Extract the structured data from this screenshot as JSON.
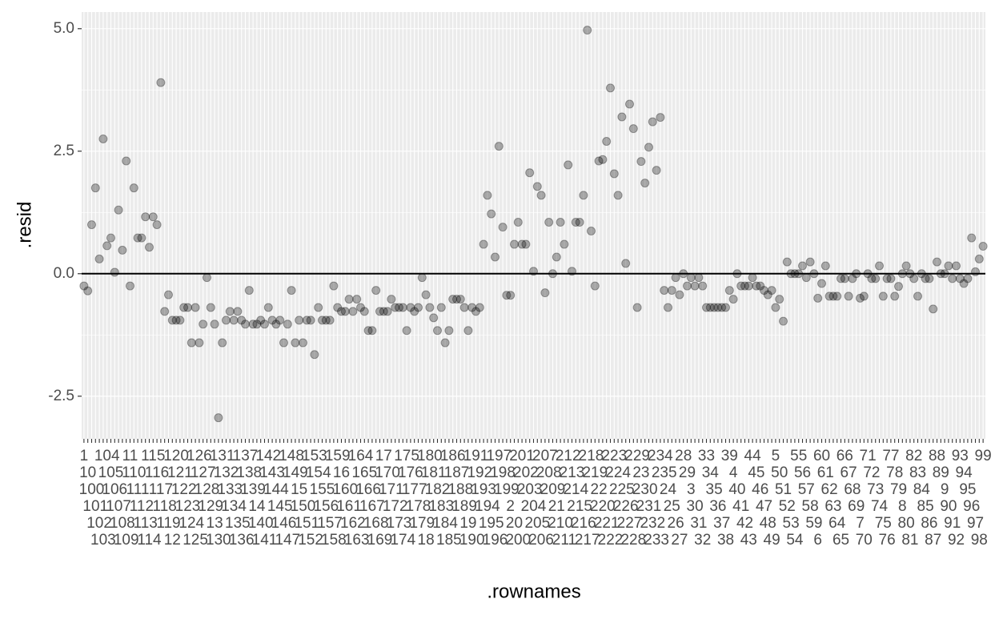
{
  "chart_data": {
    "type": "scatter",
    "x_label": ".rownames",
    "y_label": ".resid",
    "categories": [
      "1",
      "10",
      "100",
      "101",
      "102",
      "103",
      "104",
      "105",
      "106",
      "107",
      "108",
      "109",
      "11",
      "110",
      "111",
      "112",
      "113",
      "114",
      "115",
      "116",
      "117",
      "118",
      "119",
      "12",
      "120",
      "121",
      "122",
      "123",
      "124",
      "125",
      "126",
      "127",
      "128",
      "129",
      "13",
      "130",
      "131",
      "132",
      "133",
      "134",
      "135",
      "136",
      "137",
      "138",
      "139",
      "14",
      "140",
      "141",
      "142",
      "143",
      "144",
      "145",
      "146",
      "147",
      "148",
      "149",
      "15",
      "150",
      "151",
      "152",
      "153",
      "154",
      "155",
      "156",
      "157",
      "158",
      "159",
      "16",
      "160",
      "161",
      "162",
      "163",
      "164",
      "165",
      "166",
      "167",
      "168",
      "169",
      "17",
      "170",
      "171",
      "172",
      "173",
      "174",
      "175",
      "176",
      "177",
      "178",
      "179",
      "18",
      "180",
      "181",
      "182",
      "183",
      "184",
      "185",
      "186",
      "187",
      "188",
      "189",
      "19",
      "190",
      "191",
      "192",
      "193",
      "194",
      "195",
      "196",
      "197",
      "198",
      "199",
      "2",
      "20",
      "200",
      "201",
      "202",
      "203",
      "204",
      "205",
      "206",
      "207",
      "208",
      "209",
      "21",
      "210",
      "211",
      "212",
      "213",
      "214",
      "215",
      "216",
      "217",
      "218",
      "219",
      "22",
      "220",
      "221",
      "222",
      "223",
      "224",
      "225",
      "226",
      "227",
      "228",
      "229",
      "23",
      "230",
      "231",
      "232",
      "233",
      "234",
      "235",
      "24",
      "25",
      "26",
      "27",
      "28",
      "29",
      "3",
      "30",
      "31",
      "32",
      "33",
      "34",
      "35",
      "36",
      "37",
      "38",
      "39",
      "4",
      "40",
      "41",
      "42",
      "43",
      "44",
      "45",
      "46",
      "47",
      "48",
      "49",
      "5",
      "50",
      "51",
      "52",
      "53",
      "54",
      "55",
      "56",
      "57",
      "58",
      "59",
      "6",
      "60",
      "61",
      "62",
      "63",
      "64",
      "65",
      "66",
      "67",
      "68",
      "69",
      "7",
      "70",
      "71",
      "72",
      "73",
      "74",
      "75",
      "76",
      "77",
      "78",
      "79",
      "8",
      "80",
      "81",
      "82",
      "83",
      "84",
      "85",
      "86",
      "87",
      "88",
      "89",
      "9",
      "90",
      "91",
      "92",
      "93",
      "94",
      "95",
      "96",
      "97",
      "98",
      "99"
    ],
    "values": [
      -0.25,
      -0.35,
      1.0,
      1.75,
      0.3,
      2.75,
      0.57,
      0.73,
      0.03,
      1.3,
      0.48,
      2.3,
      -0.25,
      1.75,
      0.73,
      0.73,
      1.16,
      0.54,
      1.16,
      1.0,
      3.9,
      -0.77,
      -0.43,
      -0.95,
      -0.95,
      -0.95,
      -0.69,
      -0.69,
      -1.41,
      -0.69,
      -1.41,
      -1.03,
      -0.08,
      -0.69,
      -1.03,
      -2.94,
      -1.41,
      -0.95,
      -0.77,
      -0.95,
      -0.77,
      -0.95,
      -1.03,
      -0.34,
      -1.03,
      -1.03,
      -0.95,
      -1.03,
      -0.69,
      -0.95,
      -1.03,
      -0.95,
      -1.41,
      -1.03,
      -0.34,
      -1.41,
      -0.95,
      -1.41,
      -0.95,
      -0.95,
      -1.65,
      -0.69,
      -0.95,
      -0.95,
      -0.95,
      -0.25,
      -0.69,
      -0.77,
      -0.77,
      -0.52,
      -0.77,
      -0.52,
      -0.69,
      -0.77,
      -1.16,
      -1.16,
      -0.34,
      -0.77,
      -0.77,
      -0.77,
      -0.52,
      -0.69,
      -0.69,
      -0.69,
      -1.16,
      -0.69,
      -0.77,
      -0.69,
      -0.08,
      -0.43,
      -0.69,
      -0.9,
      -1.16,
      -0.69,
      -1.41,
      -1.16,
      -0.52,
      -0.52,
      -0.52,
      -0.69,
      -1.16,
      -0.69,
      -0.77,
      -0.69,
      0.6,
      1.6,
      1.22,
      0.34,
      2.6,
      0.95,
      -0.44,
      -0.44,
      0.6,
      1.05,
      0.6,
      0.6,
      2.06,
      0.05,
      1.78,
      1.6,
      -0.39,
      1.05,
      0.0,
      0.34,
      1.05,
      0.6,
      2.22,
      0.05,
      1.05,
      1.05,
      1.6,
      4.97,
      0.87,
      -0.25,
      2.3,
      2.33,
      2.7,
      3.79,
      2.04,
      1.6,
      3.2,
      0.21,
      3.46,
      2.96,
      -0.69,
      2.29,
      1.85,
      2.58,
      3.1,
      2.11,
      3.19,
      -0.34,
      -0.69,
      -0.34,
      -0.08,
      -0.43,
      0.0,
      -0.25,
      -0.08,
      -0.25,
      -0.08,
      -0.25,
      -0.69,
      -0.69,
      -0.69,
      -0.69,
      -0.69,
      -0.69,
      -0.34,
      -0.52,
      0.0,
      -0.25,
      -0.25,
      -0.25,
      -0.08,
      -0.25,
      -0.25,
      -0.34,
      -0.43,
      -0.34,
      -0.69,
      -0.52,
      -0.97,
      0.24,
      0.0,
      0.0,
      0.0,
      0.16,
      -0.08,
      0.24,
      0.0,
      -0.5,
      -0.2,
      0.16,
      -0.46,
      -0.46,
      -0.46,
      -0.1,
      -0.1,
      -0.46,
      -0.1,
      0.0,
      -0.5,
      -0.46,
      0.0,
      -0.1,
      -0.1,
      0.16,
      -0.46,
      -0.1,
      -0.1,
      -0.46,
      -0.26,
      0.0,
      0.16,
      0.0,
      -0.1,
      -0.46,
      0.0,
      -0.1,
      -0.1,
      -0.72,
      0.24,
      0.0,
      0.0,
      0.16,
      -0.1,
      0.16,
      -0.1,
      -0.2,
      -0.1,
      0.73,
      0.04,
      0.3,
      0.56
    ],
    "color": "#000000",
    "ylim": [
      -3.37,
      5.34
    ],
    "yticks": [
      {
        "value": -2.5,
        "label": "-2.5"
      },
      {
        "value": 0,
        "label": "0.0"
      },
      {
        "value": 2.5,
        "label": "2.5"
      },
      {
        "value": 5,
        "label": "5.0"
      }
    ],
    "hline": 0,
    "grid": true
  }
}
